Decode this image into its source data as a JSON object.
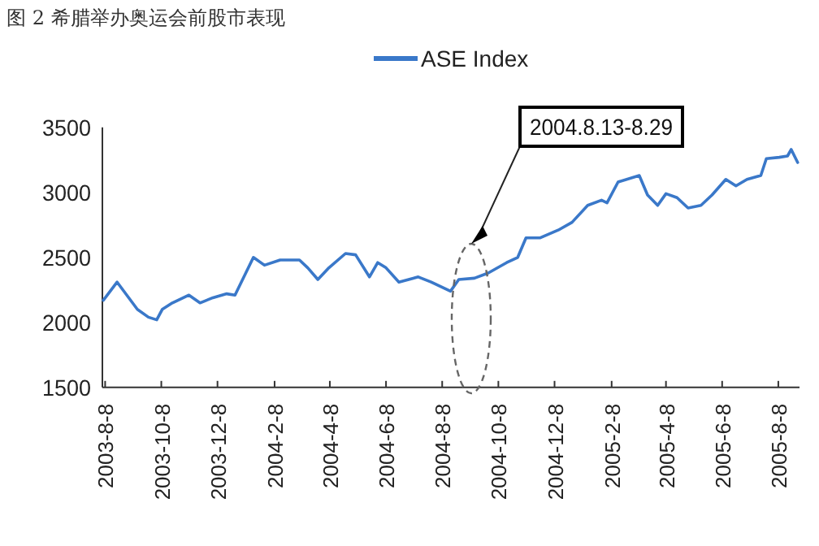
{
  "chart_data": {
    "type": "line",
    "title": "图 2  希腊举办奥运会前股市表现",
    "x": [
      "2003-08-06",
      "2003-08-21",
      "2003-09-12",
      "2003-09-24",
      "2003-10-03",
      "2003-10-09",
      "2003-10-20",
      "2003-11-07",
      "2003-11-19",
      "2003-12-03",
      "2003-12-18",
      "2003-12-27",
      "2004-01-16",
      "2004-01-28",
      "2004-02-14",
      "2004-03-06",
      "2004-03-15",
      "2004-03-26",
      "2004-04-07",
      "2004-04-25",
      "2004-05-06",
      "2004-05-21",
      "2004-05-30",
      "2004-06-08",
      "2004-06-22",
      "2004-07-13",
      "2004-07-27",
      "2004-08-17",
      "2004-08-26",
      "2004-09-12",
      "2004-09-27",
      "2004-10-17",
      "2004-10-29",
      "2004-11-07",
      "2004-11-22",
      "2004-12-12",
      "2004-12-27",
      "2005-01-13",
      "2005-01-28",
      "2005-02-03",
      "2005-02-15",
      "2005-03-10",
      "2005-03-19",
      "2005-03-30",
      "2005-04-08",
      "2005-04-20",
      "2005-05-02",
      "2005-05-16",
      "2005-05-28",
      "2005-06-12",
      "2005-06-23",
      "2005-07-05",
      "2005-07-20",
      "2005-07-26",
      "2005-08-09",
      "2005-08-18",
      "2005-08-22",
      "2005-08-29"
    ],
    "series": [
      {
        "name": "ASE Index",
        "color": "#3a78c9",
        "values": [
          2170,
          2310,
          2100,
          2040,
          2020,
          2100,
          2150,
          2210,
          2150,
          2190,
          2220,
          2210,
          2500,
          2440,
          2480,
          2480,
          2420,
          2330,
          2420,
          2530,
          2520,
          2350,
          2460,
          2420,
          2310,
          2350,
          2310,
          2240,
          2330,
          2340,
          2380,
          2460,
          2500,
          2650,
          2650,
          2710,
          2770,
          2900,
          2940,
          2920,
          3080,
          3130,
          2980,
          2900,
          2990,
          2960,
          2880,
          2900,
          2980,
          3100,
          3050,
          3100,
          3130,
          3260,
          3270,
          3280,
          3330,
          3230
        ]
      }
    ],
    "xlim": [
      "2003-08-05",
      "2005-08-31"
    ],
    "xticks": [
      {
        "value": "2003-08-08",
        "label": "2003-8-8"
      },
      {
        "value": "2003-10-08",
        "label": "2003-10-8"
      },
      {
        "value": "2003-12-08",
        "label": "2003-12-8"
      },
      {
        "value": "2004-02-08",
        "label": "2004-2-8"
      },
      {
        "value": "2004-04-08",
        "label": "2004-4-8"
      },
      {
        "value": "2004-06-08",
        "label": "2004-6-8"
      },
      {
        "value": "2004-08-08",
        "label": "2004-8-8"
      },
      {
        "value": "2004-10-08",
        "label": "2004-10-8"
      },
      {
        "value": "2004-12-08",
        "label": "2004-12-8"
      },
      {
        "value": "2005-02-08",
        "label": "2005-2-8"
      },
      {
        "value": "2005-04-08",
        "label": "2005-4-8"
      },
      {
        "value": "2005-06-08",
        "label": "2005-6-8"
      },
      {
        "value": "2005-08-08",
        "label": "2005-8-8"
      }
    ],
    "ylim": [
      1500,
      3500
    ],
    "yticks": [
      1500,
      2000,
      2500,
      3000,
      3500
    ],
    "annotations": [
      "2004.8.13-8.29"
    ],
    "grid": false,
    "legend": "top",
    "marker": "none",
    "line_style": "solid"
  }
}
